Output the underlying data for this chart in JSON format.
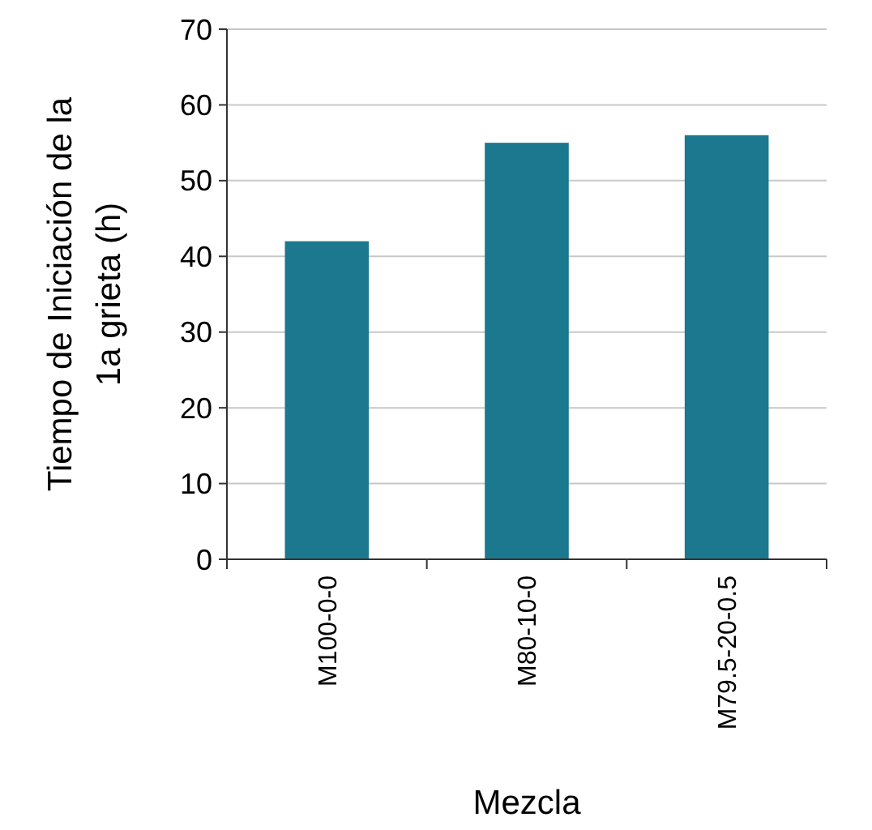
{
  "chart_data": {
    "type": "bar",
    "xlabel": "Mezcla",
    "ylabel": "Tiempo de Iniciación de la\n1a grieta  (h)",
    "categories": [
      "M100-0-0",
      "M80-10-0",
      "M79.5-20-0.5"
    ],
    "values": [
      42,
      55,
      56
    ],
    "color": "#1b788e",
    "ylim": [
      0,
      70
    ],
    "yticks": [
      0,
      10,
      20,
      30,
      40,
      50,
      60,
      70
    ],
    "grid": "y"
  }
}
